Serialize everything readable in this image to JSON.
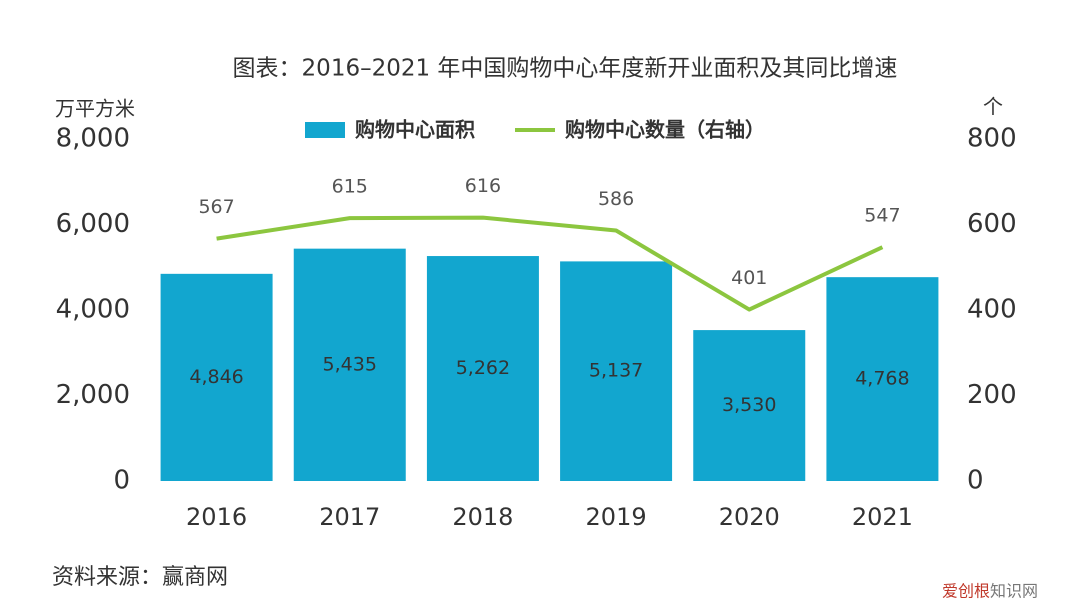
{
  "chart_data": {
    "type": "bar+line",
    "title": "图表：2016–2021 年中国购物中心年度新开业面积及其同比增速",
    "y_label": "万平方米",
    "y2_label": "个",
    "categories": [
      "2016",
      "2017",
      "2018",
      "2019",
      "2020",
      "2021"
    ],
    "series": [
      {
        "name": "购物中心面积",
        "type": "bar",
        "color": "#12a6cf",
        "axis": "y",
        "values": [
          4846,
          5435,
          5262,
          5137,
          3530,
          4768
        ],
        "value_labels": [
          "4,846",
          "5,435",
          "5,262",
          "5,137",
          "3,530",
          "4,768"
        ]
      },
      {
        "name": "购物中心数量（右轴）",
        "type": "line",
        "color": "#8cc63f",
        "axis": "y2",
        "values": [
          567,
          615,
          616,
          586,
          401,
          547
        ]
      }
    ],
    "ylim": [
      0,
      8000
    ],
    "yticks": [
      0,
      {
        "value": 2000,
        "label": "2,000"
      },
      {
        "value": 4000,
        "label": "4,000"
      },
      {
        "value": 6000,
        "label": "6,000"
      },
      {
        "value": 8000,
        "label": "8,000"
      }
    ],
    "y2lim": [
      0,
      800
    ],
    "y2ticks": [
      0,
      200,
      400,
      600,
      800
    ],
    "legend": "top",
    "source": "资料来源：赢商网",
    "watermark": [
      "爱创根",
      "知识网"
    ]
  }
}
